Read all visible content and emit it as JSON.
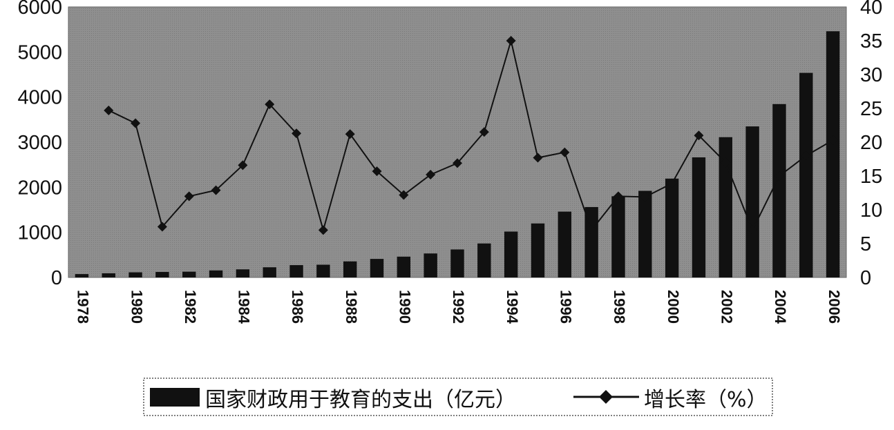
{
  "chart_data": {
    "type": "bar+line",
    "years": [
      1978,
      1979,
      1980,
      1981,
      1982,
      1983,
      1984,
      1985,
      1986,
      1987,
      1988,
      1989,
      1990,
      1991,
      1992,
      1993,
      1994,
      1995,
      1996,
      1997,
      1998,
      1999,
      2000,
      2001,
      2002,
      2003,
      2004,
      2005,
      2006
    ],
    "x_tick_labels": [
      "1978",
      "1980",
      "1982",
      "1984",
      "1986",
      "1988",
      "1990",
      "1992",
      "1994",
      "1996",
      "1998",
      "2000",
      "2002",
      "2004",
      "2006"
    ],
    "series": [
      {
        "name": "国家财政用于教育的支出（亿元）",
        "type": "bar",
        "axis": "left",
        "color": "#111111",
        "values": [
          75,
          93,
          114,
          122,
          128,
          156,
          180,
          226,
          274,
          283,
          356,
          412,
          462,
          532,
          621,
          754,
          1018,
          1198,
          1460,
          1562,
          1801,
          1921,
          2192,
          2664,
          3111,
          3350,
          3845,
          4537,
          5460
        ]
      },
      {
        "name": "增长率（%）",
        "type": "line",
        "axis": "right",
        "marker": "diamond",
        "color": "#111111",
        "values": [
          null,
          24.7,
          22.8,
          7.5,
          12.0,
          12.9,
          16.6,
          25.6,
          21.3,
          7.0,
          21.2,
          15.7,
          12.2,
          15.2,
          16.9,
          21.5,
          35.0,
          17.7,
          18.5,
          7.0,
          12.0,
          11.9,
          13.9,
          21.0,
          17.0,
          7.0,
          15.0,
          18.0,
          20.3
        ]
      }
    ],
    "y_left": {
      "min": 0,
      "max": 6000,
      "ticks": [
        "0",
        "1000",
        "2000",
        "3000",
        "4000",
        "5000",
        "6000"
      ]
    },
    "y_right": {
      "min": 0,
      "max": 40,
      "ticks": [
        "0",
        "5",
        "10",
        "15",
        "20",
        "25",
        "30",
        "35",
        "40"
      ]
    },
    "legend": {
      "placement": "bottom",
      "bar_label": "国家财政用于教育的支出（亿元）",
      "line_label": "增长率（%）"
    },
    "plot_background": "#8c8c8c",
    "grid": false
  }
}
